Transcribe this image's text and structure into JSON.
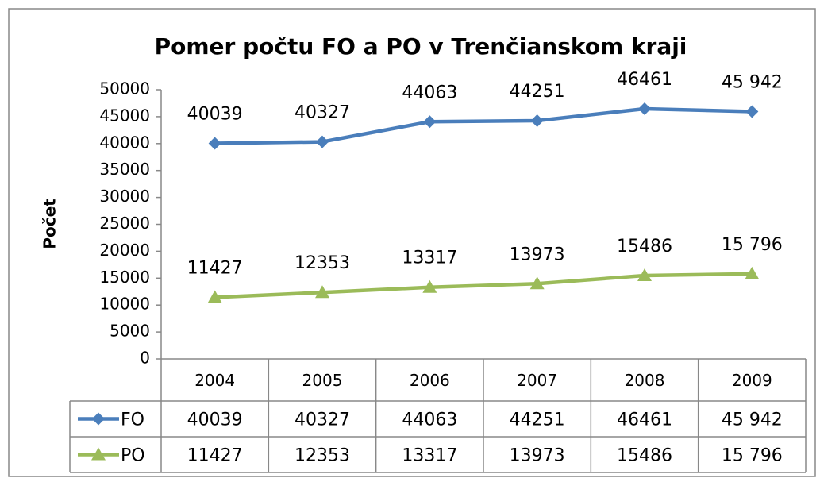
{
  "chart_data": {
    "type": "line",
    "title": "Pomer počtu FO a PO v Trenčianskom kraji",
    "y_label": "Počet",
    "categories": [
      "2004",
      "2005",
      "2006",
      "2007",
      "2008",
      "2009"
    ],
    "series": [
      {
        "name": "FO",
        "color": "#4a7ebb",
        "marker": "diamond",
        "values": [
          40039,
          40327,
          44063,
          44251,
          46461,
          45942
        ],
        "value_labels": [
          "40039",
          "40327",
          "44063",
          "44251",
          "46461",
          "45 942"
        ]
      },
      {
        "name": "PO",
        "color": "#9bbb59",
        "marker": "triangle",
        "values": [
          11427,
          12353,
          13317,
          13973,
          15486,
          15796
        ],
        "value_labels": [
          "11427",
          "12353",
          "13317",
          "13973",
          "15486",
          "15 796"
        ]
      }
    ],
    "ylim": [
      0,
      50000
    ],
    "yticks": [
      0,
      5000,
      10000,
      15000,
      20000,
      25000,
      30000,
      35000,
      40000,
      45000,
      50000
    ],
    "grid": false,
    "data_table": true
  }
}
